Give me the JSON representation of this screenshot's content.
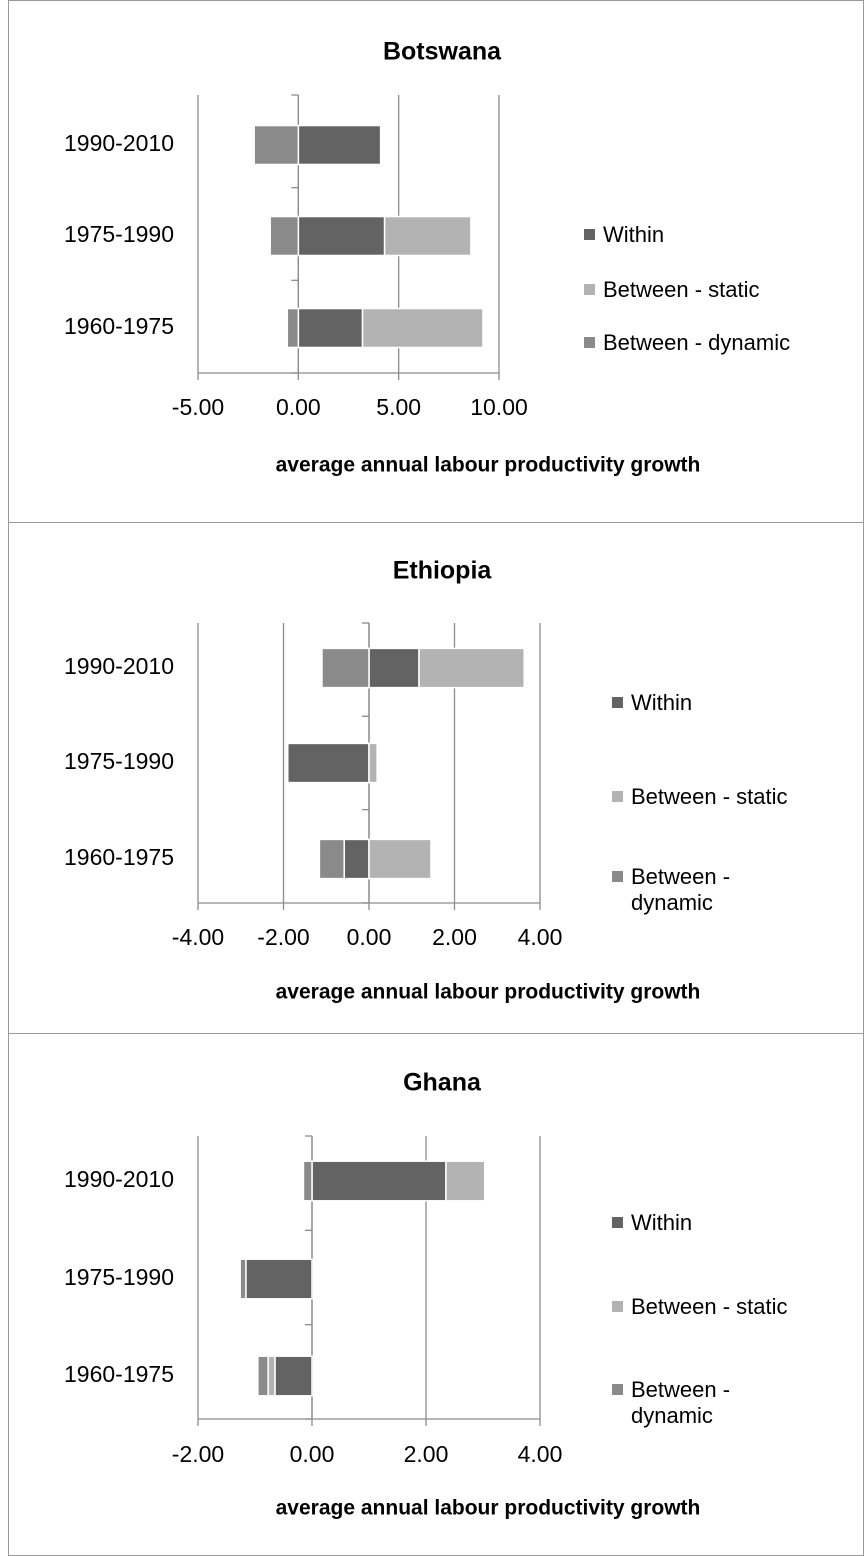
{
  "chart_data": [
    {
      "type": "bar",
      "orientation": "horizontal",
      "stacked": true,
      "title": "Botswana",
      "categories": [
        "1990-2010",
        "1975-1990",
        "1960-1975"
      ],
      "series": [
        {
          "name": "Within",
          "color": "#636363",
          "values": [
            4.1,
            4.3,
            3.2
          ]
        },
        {
          "name": "Between - static",
          "color": "#b3b3b3",
          "values": [
            0,
            4.3,
            6.0
          ]
        },
        {
          "name": "Between - dynamic",
          "color": "#8a8a8a",
          "values": [
            -2.2,
            -1.4,
            -0.55
          ]
        }
      ],
      "xlim": [
        -5,
        10
      ],
      "xticks": [
        {
          "value": -5,
          "label": "-5.00"
        },
        {
          "value": 0,
          "label": "0.00"
        },
        {
          "value": 5,
          "label": "5.00"
        },
        {
          "value": 10,
          "label": "10.00"
        }
      ],
      "xlabel": "average annual labour productivity growth",
      "grid": true,
      "legend": "right"
    },
    {
      "type": "bar",
      "orientation": "horizontal",
      "stacked": true,
      "title": "Ethiopia",
      "categories": [
        "1990-2010",
        "1975-1990",
        "1960-1975"
      ],
      "series": [
        {
          "name": "Within",
          "color": "#636363",
          "values": [
            1.17,
            -1.9,
            -0.58
          ]
        },
        {
          "name": "Between - static",
          "color": "#b3b3b3",
          "values": [
            2.46,
            0.19,
            1.45
          ]
        },
        {
          "name": "Between - dynamic",
          "color": "#8a8a8a",
          "values": [
            -1.1,
            0,
            -0.58
          ]
        }
      ],
      "xlim": [
        -4,
        4
      ],
      "xticks": [
        {
          "value": -4,
          "label": "-4.00"
        },
        {
          "value": -2,
          "label": "-2.00"
        },
        {
          "value": 0,
          "label": "0.00"
        },
        {
          "value": 2,
          "label": "2.00"
        },
        {
          "value": 4,
          "label": "4.00"
        }
      ],
      "xlabel": "average annual labour productivity growth",
      "grid": true,
      "legend": "right"
    },
    {
      "type": "bar",
      "orientation": "horizontal",
      "stacked": true,
      "title": "Ghana",
      "categories": [
        "1990-2010",
        "1975-1990",
        "1960-1975"
      ],
      "series": [
        {
          "name": "Within",
          "color": "#636363",
          "values": [
            2.35,
            -1.16,
            -0.65
          ]
        },
        {
          "name": "Between - static",
          "color": "#b3b3b3",
          "values": [
            0.68,
            0,
            -0.12
          ]
        },
        {
          "name": "Between - dynamic",
          "color": "#8a8a8a",
          "values": [
            -0.15,
            -0.1,
            -0.18
          ]
        }
      ],
      "xlim": [
        -2,
        4
      ],
      "xticks": [
        {
          "value": -2,
          "label": "-2.00"
        },
        {
          "value": 0,
          "label": "0.00"
        },
        {
          "value": 2,
          "label": "2.00"
        },
        {
          "value": 4,
          "label": "4.00"
        }
      ],
      "xlabel": "average annual labour productivity growth",
      "grid": true,
      "legend": "right"
    }
  ]
}
